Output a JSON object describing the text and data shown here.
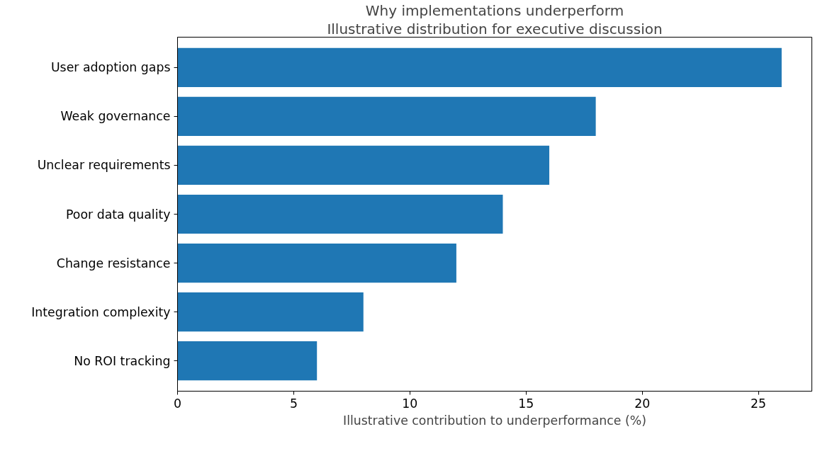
{
  "chart_data": {
    "type": "bar",
    "orientation": "horizontal",
    "title": "Why implementations underperform",
    "subtitle": "Illustrative distribution for executive discussion",
    "xlabel": "Illustrative contribution to underperformance (%)",
    "categories": [
      "User adoption gaps",
      "Weak governance",
      "Unclear requirements",
      "Poor data quality",
      "Change resistance",
      "Integration complexity",
      "No ROI tracking"
    ],
    "values": [
      26,
      18,
      16,
      14,
      12,
      8,
      6
    ],
    "color": "#1f77b4",
    "xlim": [
      0,
      27.3
    ],
    "xticks": [
      0,
      5,
      10,
      15,
      20,
      25
    ],
    "grid": false
  }
}
